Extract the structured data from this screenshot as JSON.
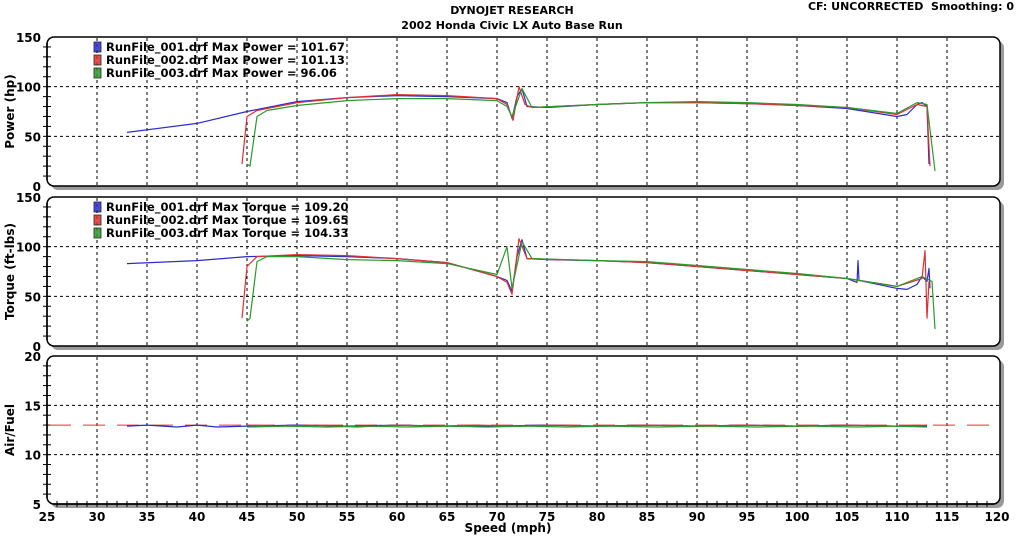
{
  "header": {
    "title": "DYNOJET RESEARCH",
    "subtitle": "2002 Honda Civic LX Auto Base Run",
    "status": "CF: UNCORRECTED  Smoothing: 0"
  },
  "chart_data": {
    "type": "line",
    "xlabel": "Speed (mph)",
    "xlim": [
      25,
      120
    ],
    "xticks": [
      25,
      30,
      35,
      40,
      45,
      50,
      55,
      60,
      65,
      70,
      75,
      80,
      85,
      90,
      95,
      100,
      105,
      110,
      115,
      120
    ],
    "grid": true,
    "colors": {
      "RunFile_001": "#2b2bd0",
      "RunFile_002": "#e03030",
      "RunFile_003": "#2a9a2a"
    },
    "panels": [
      {
        "id": "power",
        "ylabel": "Power (hp)",
        "ylim": [
          0,
          150
        ],
        "yticks": [
          0,
          50,
          100,
          150
        ],
        "legend_placement": "top-left",
        "legend": [
          "RunFile_001.drf Max Power = 101.67",
          "RunFile_002.drf Max Power = 101.13",
          "RunFile_003.drf Max Power = 96.06"
        ],
        "series": [
          {
            "name": "RunFile_001",
            "points": [
              [
                33,
                54
              ],
              [
                40,
                63
              ],
              [
                45,
                75
              ],
              [
                50,
                85
              ],
              [
                55,
                89
              ],
              [
                60,
                91
              ],
              [
                65,
                90
              ],
              [
                70,
                88
              ],
              [
                71,
                84
              ],
              [
                71.5,
                68
              ],
              [
                72,
                90
              ],
              [
                72.5,
                98
              ],
              [
                73,
                80
              ],
              [
                75,
                79
              ],
              [
                80,
                82
              ],
              [
                85,
                84
              ],
              [
                90,
                84
              ],
              [
                95,
                83
              ],
              [
                100,
                81
              ],
              [
                105,
                78
              ],
              [
                110,
                70
              ],
              [
                111,
                72
              ],
              [
                112,
                82
              ],
              [
                112.5,
                84
              ],
              [
                113,
                80
              ],
              [
                113.2,
                22
              ]
            ]
          },
          {
            "name": "RunFile_002",
            "points": [
              [
                44.5,
                22
              ],
              [
                45,
                70
              ],
              [
                46,
                76
              ],
              [
                50,
                84
              ],
              [
                55,
                89
              ],
              [
                60,
                92
              ],
              [
                65,
                91
              ],
              [
                70,
                88
              ],
              [
                71,
                82
              ],
              [
                71.6,
                66
              ],
              [
                72.2,
                100
              ],
              [
                72.8,
                82
              ],
              [
                73.5,
                79
              ],
              [
                80,
                82
              ],
              [
                85,
                84
              ],
              [
                90,
                84
              ],
              [
                95,
                83
              ],
              [
                100,
                81
              ],
              [
                105,
                79
              ],
              [
                110,
                72
              ],
              [
                112,
                82
              ],
              [
                113,
                80
              ],
              [
                113.3,
                20
              ]
            ]
          },
          {
            "name": "RunFile_003",
            "points": [
              [
                45,
                22
              ],
              [
                45.3,
                20
              ],
              [
                46,
                70
              ],
              [
                47,
                76
              ],
              [
                50,
                81
              ],
              [
                55,
                86
              ],
              [
                60,
                88
              ],
              [
                65,
                88
              ],
              [
                70,
                86
              ],
              [
                71,
                80
              ],
              [
                71.5,
                70
              ],
              [
                72.5,
                98
              ],
              [
                73.5,
                79
              ],
              [
                80,
                82
              ],
              [
                85,
                84
              ],
              [
                90,
                85
              ],
              [
                95,
                84
              ],
              [
                100,
                82
              ],
              [
                105,
                79
              ],
              [
                110,
                73
              ],
              [
                112,
                84
              ],
              [
                113,
                82
              ],
              [
                113.8,
                15
              ]
            ]
          }
        ]
      },
      {
        "id": "torque",
        "ylabel": "Torque (ft-lbs)",
        "ylim": [
          0,
          150
        ],
        "yticks": [
          0,
          50,
          100,
          150
        ],
        "legend_placement": "top-left",
        "legend": [
          "RunFile_001.drf Max Torque = 109.20",
          "RunFile_002.drf Max Torque = 109.65",
          "RunFile_003.drf Max Torque = 104.33"
        ],
        "series": [
          {
            "name": "RunFile_001",
            "points": [
              [
                33,
                83
              ],
              [
                40,
                86
              ],
              [
                45,
                90
              ],
              [
                50,
                91
              ],
              [
                55,
                90
              ],
              [
                60,
                88
              ],
              [
                65,
                84
              ],
              [
                70,
                70
              ],
              [
                71,
                66
              ],
              [
                71.5,
                55
              ],
              [
                72,
                90
              ],
              [
                72.5,
                107
              ],
              [
                73,
                88
              ],
              [
                75,
                87
              ],
              [
                80,
                86
              ],
              [
                85,
                84
              ],
              [
                90,
                80
              ],
              [
                95,
                76
              ],
              [
                100,
                72
              ],
              [
                105,
                68
              ],
              [
                106,
                64
              ],
              [
                106.1,
                86
              ],
              [
                106.2,
                66
              ],
              [
                110,
                58
              ],
              [
                111,
                57
              ],
              [
                112,
                62
              ],
              [
                112.5,
                70
              ],
              [
                113,
                65
              ],
              [
                113.2,
                78
              ],
              [
                113.3,
                58
              ]
            ]
          },
          {
            "name": "RunFile_002",
            "points": [
              [
                44.5,
                28
              ],
              [
                45,
                80
              ],
              [
                46,
                90
              ],
              [
                50,
                92
              ],
              [
                55,
                91
              ],
              [
                60,
                88
              ],
              [
                65,
                84
              ],
              [
                70,
                70
              ],
              [
                71,
                64
              ],
              [
                71.5,
                52
              ],
              [
                72.2,
                108
              ],
              [
                73,
                88
              ],
              [
                80,
                86
              ],
              [
                85,
                84
              ],
              [
                90,
                80
              ],
              [
                95,
                76
              ],
              [
                100,
                72
              ],
              [
                105,
                68
              ],
              [
                110,
                60
              ],
              [
                112.5,
                68
              ],
              [
                112.8,
                96
              ],
              [
                113,
                28
              ],
              [
                113.2,
                65
              ]
            ]
          },
          {
            "name": "RunFile_003",
            "points": [
              [
                45,
                25
              ],
              [
                45.3,
                28
              ],
              [
                46,
                85
              ],
              [
                47,
                90
              ],
              [
                50,
                90
              ],
              [
                55,
                87
              ],
              [
                60,
                86
              ],
              [
                65,
                83
              ],
              [
                70,
                72
              ],
              [
                71,
                100
              ],
              [
                71.5,
                58
              ],
              [
                72.5,
                105
              ],
              [
                73.5,
                88
              ],
              [
                80,
                86
              ],
              [
                85,
                85
              ],
              [
                90,
                81
              ],
              [
                95,
                77
              ],
              [
                100,
                73
              ],
              [
                105,
                68
              ],
              [
                110,
                60
              ],
              [
                112.5,
                70
              ],
              [
                113.5,
                65
              ],
              [
                113.8,
                17
              ]
            ]
          }
        ]
      },
      {
        "id": "afr",
        "ylabel": "Air/Fuel",
        "ylim": [
          5,
          20
        ],
        "yticks": [
          5,
          10,
          15,
          20
        ],
        "reference_line": 13,
        "series": [
          {
            "name": "RunFile_001",
            "points": [
              [
                33,
                12.9
              ],
              [
                35,
                13
              ],
              [
                38,
                12.8
              ],
              [
                40,
                13
              ],
              [
                42,
                12.8
              ],
              [
                45,
                12.9
              ],
              [
                50,
                13
              ],
              [
                55,
                12.9
              ],
              [
                60,
                13
              ],
              [
                65,
                12.9
              ],
              [
                70,
                12.9
              ],
              [
                75,
                13
              ],
              [
                80,
                12.9
              ],
              [
                85,
                13
              ],
              [
                90,
                12.9
              ],
              [
                95,
                13
              ],
              [
                100,
                12.9
              ],
              [
                105,
                13
              ],
              [
                110,
                12.9
              ],
              [
                113,
                12.9
              ]
            ]
          },
          {
            "name": "RunFile_002",
            "points": [
              [
                45,
                13
              ],
              [
                48,
                12.9
              ],
              [
                52,
                13
              ],
              [
                56,
                12.8
              ],
              [
                60,
                13
              ],
              [
                64,
                12.9
              ],
              [
                68,
                13
              ],
              [
                72,
                12.9
              ],
              [
                76,
                13
              ],
              [
                80,
                12.9
              ],
              [
                85,
                13
              ],
              [
                90,
                12.9
              ],
              [
                95,
                13
              ],
              [
                100,
                12.9
              ],
              [
                105,
                13
              ],
              [
                110,
                12.9
              ],
              [
                113,
                13
              ]
            ]
          },
          {
            "name": "RunFile_003",
            "points": [
              [
                45,
                12.8
              ],
              [
                49,
                12.9
              ],
              [
                53,
                12.8
              ],
              [
                57,
                12.9
              ],
              [
                61,
                12.8
              ],
              [
                65,
                12.9
              ],
              [
                69,
                12.8
              ],
              [
                73,
                12.9
              ],
              [
                77,
                12.8
              ],
              [
                81,
                12.9
              ],
              [
                86,
                12.8
              ],
              [
                91,
                12.9
              ],
              [
                96,
                12.8
              ],
              [
                101,
                12.9
              ],
              [
                106,
                12.8
              ],
              [
                110,
                12.9
              ],
              [
                113,
                12.8
              ]
            ]
          }
        ]
      }
    ]
  }
}
